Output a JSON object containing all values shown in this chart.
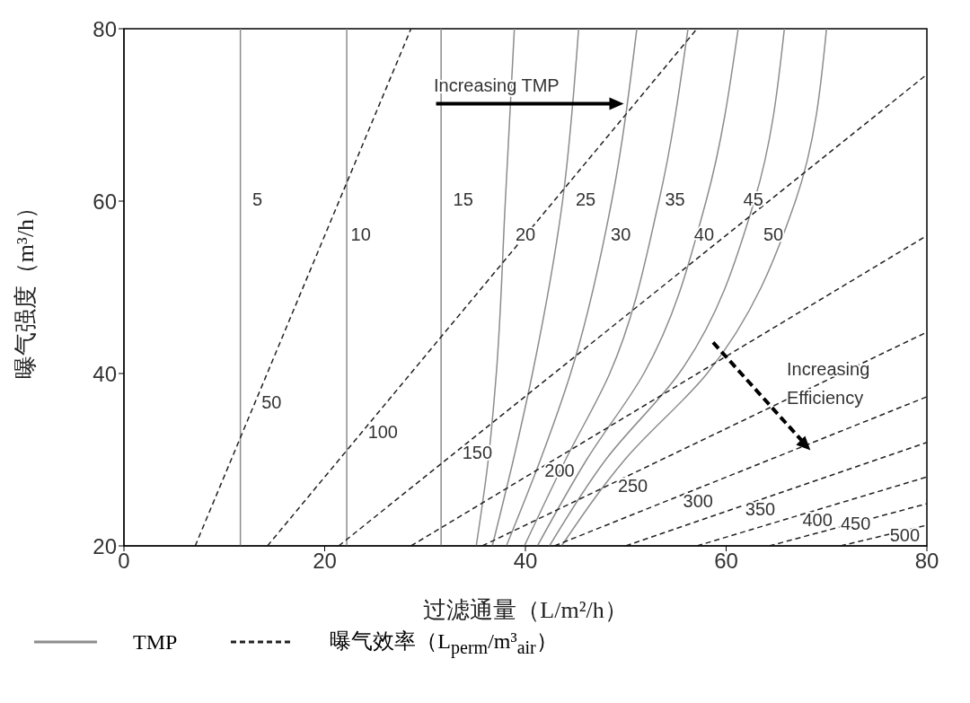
{
  "chart_data": {
    "type": "line",
    "xlabel": "过滤通量（L/m²/h）",
    "ylabel": "曝气强度（m³/h）",
    "xlim": [
      0,
      80
    ],
    "ylim": [
      20,
      80
    ],
    "xticks": [
      0,
      20,
      40,
      60,
      80
    ],
    "yticks": [
      20,
      40,
      60,
      80
    ],
    "grid": false,
    "marker": "none",
    "legend": "bottom",
    "series": [
      {
        "name": "TMP",
        "color": "#8c8c8c",
        "line_style": "solid",
        "x": [
          11.6,
          11.6
        ],
        "values": [
          20,
          80
        ]
      },
      {
        "color": "#8c8c8c",
        "line_style": "solid",
        "x": [
          22.2,
          22.2
        ],
        "values": [
          20,
          80
        ]
      },
      {
        "color": "#8c8c8c",
        "line_style": "solid",
        "x": [
          31.6,
          31.6
        ],
        "values": [
          20,
          80
        ]
      },
      {
        "color": "#8c8c8c",
        "line_style": "solid",
        "x": [
          35.1,
          36.3,
          37.1,
          38.0,
          38.9
        ],
        "values": [
          20,
          30,
          40,
          60,
          80
        ]
      },
      {
        "color": "#8c8c8c",
        "line_style": "solid",
        "x": [
          36.7,
          38.8,
          40.7,
          43.7,
          45.3
        ],
        "values": [
          20,
          30,
          40,
          60,
          80
        ]
      },
      {
        "color": "#8c8c8c",
        "line_style": "solid",
        "x": [
          38.1,
          41.5,
          44.5,
          48.6,
          51.1
        ],
        "values": [
          20,
          30,
          40,
          60,
          80
        ]
      },
      {
        "color": "#8c8c8c",
        "line_style": "solid",
        "x": [
          39.9,
          44.0,
          48.4,
          53.3,
          56.2
        ],
        "values": [
          20,
          30,
          40,
          60,
          80
        ]
      },
      {
        "color": "#8c8c8c",
        "line_style": "solid",
        "x": [
          41.2,
          46.1,
          51.8,
          58.0,
          61.2
        ],
        "values": [
          20,
          30,
          40,
          60,
          80
        ]
      },
      {
        "color": "#8c8c8c",
        "line_style": "solid",
        "x": [
          42.4,
          48.0,
          55.3,
          62.8,
          65.8
        ],
        "values": [
          20,
          30,
          40,
          60,
          80
        ]
      },
      {
        "color": "#8c8c8c",
        "line_style": "solid",
        "x": [
          43.6,
          49.9,
          58.1,
          66.9,
          70.0
        ],
        "values": [
          20,
          30,
          40,
          60,
          80
        ]
      },
      {
        "name": "曝气效率（L$_{perm}$/m³$_{air}$）",
        "color": "#222222",
        "line_style": "dashed",
        "x": [
          7.1,
          28.6
        ],
        "values": [
          20,
          80
        ]
      },
      {
        "color": "#222222",
        "line_style": "dashed",
        "x": [
          14.3,
          57.1
        ],
        "values": [
          20,
          80
        ]
      },
      {
        "color": "#222222",
        "line_style": "dashed",
        "x": [
          21.4,
          80
        ],
        "values": [
          20,
          74.7
        ]
      },
      {
        "color": "#222222",
        "line_style": "dashed",
        "x": [
          28.6,
          80
        ],
        "values": [
          20,
          56
        ]
      },
      {
        "color": "#222222",
        "line_style": "dashed",
        "x": [
          35.7,
          80
        ],
        "values": [
          20,
          44.8
        ]
      },
      {
        "color": "#222222",
        "line_style": "dashed",
        "x": [
          42.9,
          80
        ],
        "values": [
          20,
          37.3
        ]
      },
      {
        "color": "#222222",
        "line_style": "dashed",
        "x": [
          50,
          80
        ],
        "values": [
          20,
          32
        ]
      },
      {
        "color": "#222222",
        "line_style": "dashed",
        "x": [
          57.1,
          80
        ],
        "values": [
          20,
          28
        ]
      },
      {
        "color": "#222222",
        "line_style": "dashed",
        "x": [
          64.3,
          80
        ],
        "values": [
          20,
          24.9
        ]
      },
      {
        "color": "#222222",
        "line_style": "dashed",
        "x": [
          71.4,
          80
        ],
        "values": [
          20,
          22.4
        ]
      }
    ],
    "annotations": [
      "Increasing TMP",
      "Increasing Efficiency",
      "5",
      "10",
      "15",
      "20",
      "25",
      "30",
      "35",
      "40",
      "45",
      "50",
      "50",
      "100",
      "150",
      "200",
      "250",
      "300",
      "350",
      "400",
      "450",
      "500"
    ]
  }
}
